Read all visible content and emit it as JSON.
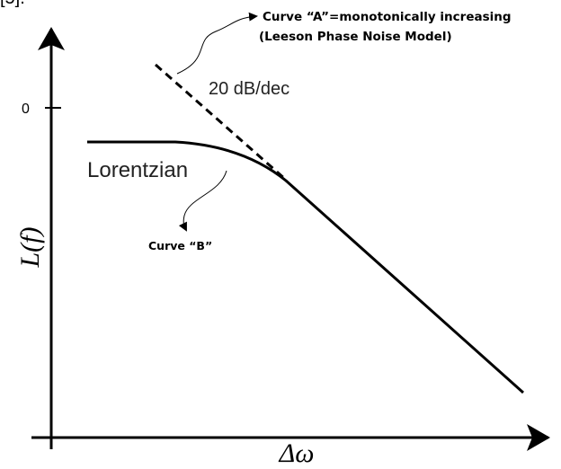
{
  "reference": "[5].",
  "annotations": {
    "curve_a_line1": "Curve “A”=monotonically increasing",
    "curve_a_line2": "(Leeson Phase Noise Model)",
    "slope": "20 dB/dec",
    "lorentzian": "Lorentzian",
    "curve_b": "Curve “B”"
  },
  "axes": {
    "y_label": "L(f)",
    "x_label": "Δω",
    "y_tick": "0"
  }
}
